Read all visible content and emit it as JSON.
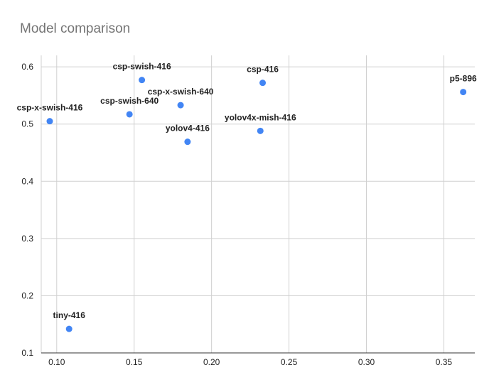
{
  "chart_data": {
    "type": "scatter",
    "title": "Model comparison",
    "xlabel": "",
    "ylabel": "",
    "xlim": [
      0.09,
      0.37
    ],
    "ylim": [
      0.1,
      0.62
    ],
    "xticks": [
      "0.10",
      "0.15",
      "0.20",
      "0.25",
      "0.30",
      "0.35"
    ],
    "yticks": [
      "0.1",
      "0.2",
      "0.3",
      "0.4",
      "0.5",
      "0.6"
    ],
    "grid": true,
    "legend": "none",
    "point_color": "#4285f4",
    "points": [
      {
        "label": "csp-x-swish-416",
        "x": 0.0955,
        "y": 0.505
      },
      {
        "label": "tiny-416",
        "x": 0.108,
        "y": 0.142
      },
      {
        "label": "csp-swish-640",
        "x": 0.147,
        "y": 0.517
      },
      {
        "label": "csp-swish-416",
        "x": 0.155,
        "y": 0.577
      },
      {
        "label": "csp-x-swish-640",
        "x": 0.18,
        "y": 0.533
      },
      {
        "label": "yolov4-416",
        "x": 0.1845,
        "y": 0.469
      },
      {
        "label": "yolov4x-mish-416",
        "x": 0.2315,
        "y": 0.488
      },
      {
        "label": "csp-416",
        "x": 0.233,
        "y": 0.572
      },
      {
        "label": "p5-896",
        "x": 0.3625,
        "y": 0.556
      }
    ]
  }
}
